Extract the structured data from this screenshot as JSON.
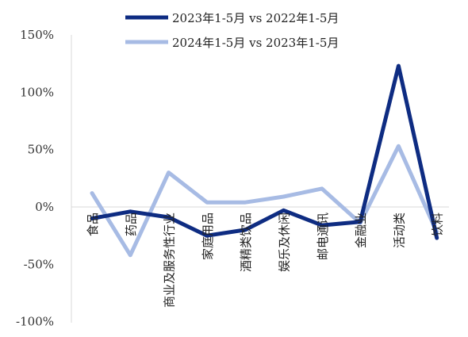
{
  "chart_data": {
    "type": "line",
    "categories": [
      "食品",
      "药品",
      "商业及服务性行业",
      "家庭用品",
      "酒精类饮品",
      "娱乐及休闲",
      "邮电通讯",
      "金融业",
      "活动类",
      "饮料"
    ],
    "series": [
      {
        "name": "2023年1-5月 vs 2022年1-5月",
        "color": "#0e2c82",
        "values": [
          -10,
          -4,
          -9,
          -25,
          -20,
          -3,
          -16,
          -13,
          123,
          -27
        ]
      },
      {
        "name": "2024年1-5月 vs 2023年1-5月",
        "color": "#a7bbe4",
        "values": [
          12,
          -42,
          30,
          4,
          4,
          9,
          16,
          -14,
          53,
          -22
        ]
      }
    ],
    "yticks": [
      "150%",
      "100%",
      "50%",
      "0%",
      "-50%",
      "-100%"
    ],
    "ylim": [
      -100,
      150
    ],
    "grid": false,
    "legend_position": "top"
  }
}
